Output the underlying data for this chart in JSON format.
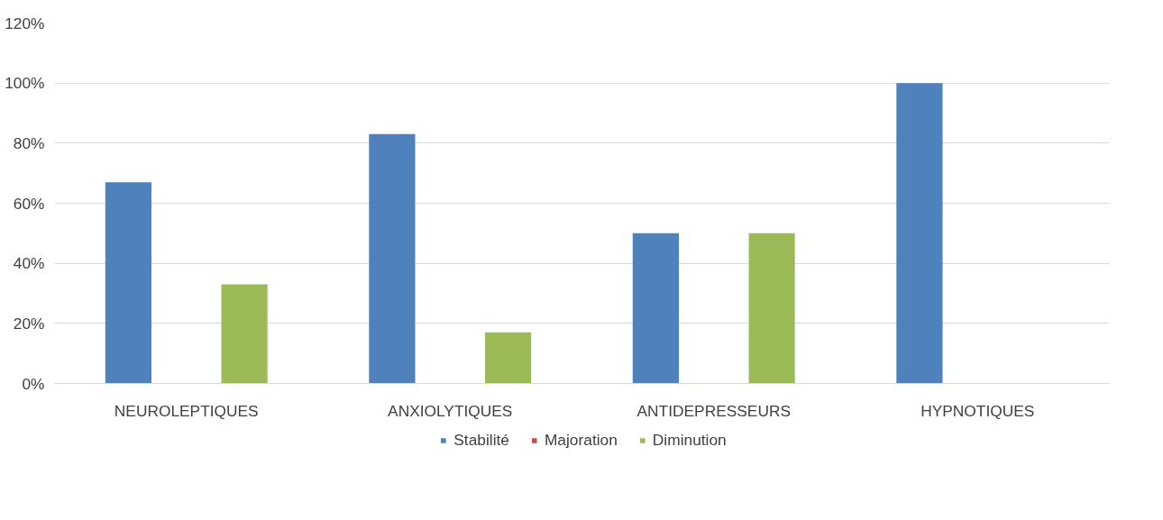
{
  "chart_data": {
    "type": "bar",
    "categories": [
      "NEUROLEPTIQUES",
      "ANXIOLYTIQUES",
      "ANTIDEPRESSEURS",
      "HYPNOTIQUES"
    ],
    "series": [
      {
        "name": "Stabilité",
        "color": "#4f81bd",
        "values": [
          67,
          83,
          50,
          100
        ]
      },
      {
        "name": "Majoration",
        "color": "#c0504d",
        "values": [
          0,
          0,
          0,
          0
        ]
      },
      {
        "name": "Diminution",
        "color": "#9bbb59",
        "values": [
          33,
          17,
          50,
          0
        ]
      }
    ],
    "ylim": [
      0,
      120
    ],
    "yticks": [
      {
        "value": 0,
        "label": "0%"
      },
      {
        "value": 20,
        "label": "20%"
      },
      {
        "value": 40,
        "label": "40%"
      },
      {
        "value": 60,
        "label": "60%"
      },
      {
        "value": 80,
        "label": "80%"
      },
      {
        "value": 100,
        "label": "100%"
      },
      {
        "value": 120,
        "label": "120%"
      }
    ],
    "grid": "y",
    "legend": "bottom"
  }
}
